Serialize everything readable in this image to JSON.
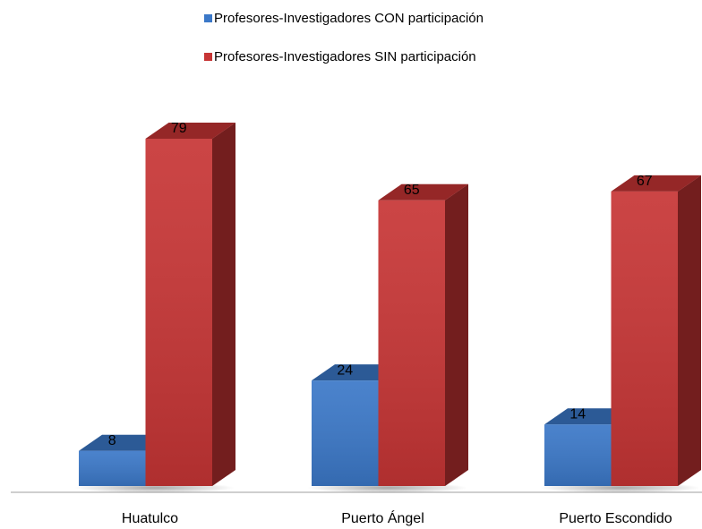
{
  "chart_data": {
    "type": "bar3d",
    "categories": [
      "Huatulco",
      "Puerto Ángel",
      "Puerto Escondido"
    ],
    "series": [
      {
        "name": "Profesores-Investigadores CON participación",
        "color": "#3b78c8",
        "values": [
          8,
          24,
          14
        ]
      },
      {
        "name": "Profesores-Investigadores SIN participación",
        "color": "#c73535",
        "values": [
          79,
          65,
          67
        ]
      }
    ],
    "legend": "top"
  }
}
